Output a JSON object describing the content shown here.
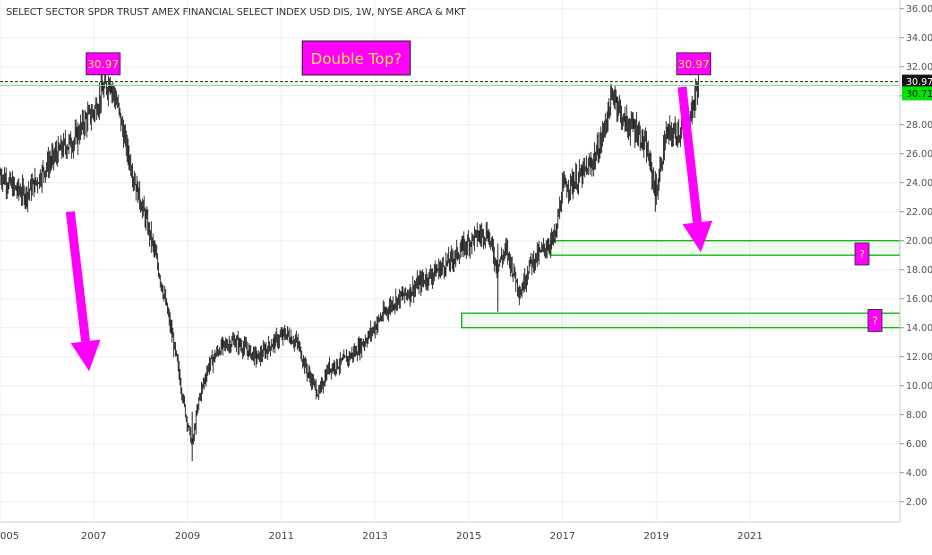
{
  "chart_data": {
    "type": "candlestick",
    "title": "SELECT SECTOR SPDR TRUST AMEX FINANCIAL SELECT INDEX USD DIS, 1W, NYSE ARCA & MKT",
    "x_ticks": [
      "005",
      "2007",
      "2009",
      "2011",
      "2013",
      "2015",
      "2017",
      "2019",
      "2021"
    ],
    "y_ticks": [
      "2.00",
      "4.00",
      "6.00",
      "8.00",
      "10.00",
      "12.00",
      "14.00",
      "16.00",
      "18.00",
      "20.00",
      "22.00",
      "24.00",
      "26.00",
      "28.00",
      "30.00",
      "32.00",
      "34.00",
      "36.00"
    ],
    "ylim": [
      0.6,
      36.6
    ],
    "xlim": [
      2005.0,
      2024.2
    ],
    "price_path": [
      [
        2005.0,
        24.6
      ],
      [
        2005.3,
        23.6
      ],
      [
        2005.55,
        23.2
      ],
      [
        2005.8,
        24.2
      ],
      [
        2006.0,
        25.2
      ],
      [
        2006.3,
        26.3
      ],
      [
        2006.6,
        27.0
      ],
      [
        2006.8,
        28.2
      ],
      [
        2007.0,
        28.9
      ],
      [
        2007.2,
        30.4
      ],
      [
        2007.35,
        30.97
      ],
      [
        2007.5,
        29.4
      ],
      [
        2007.7,
        26.4
      ],
      [
        2007.9,
        23.8
      ],
      [
        2008.1,
        21.6
      ],
      [
        2008.3,
        19.2
      ],
      [
        2008.5,
        16.2
      ],
      [
        2008.65,
        13.8
      ],
      [
        2008.8,
        11.2
      ],
      [
        2008.95,
        8.2
      ],
      [
        2009.1,
        5.9
      ],
      [
        2009.25,
        9.2
      ],
      [
        2009.45,
        11.4
      ],
      [
        2009.7,
        12.6
      ],
      [
        2010.0,
        13.1
      ],
      [
        2010.3,
        12.4
      ],
      [
        2010.5,
        11.9
      ],
      [
        2010.8,
        12.9
      ],
      [
        2011.1,
        13.6
      ],
      [
        2011.35,
        12.9
      ],
      [
        2011.55,
        11.0
      ],
      [
        2011.8,
        9.4
      ],
      [
        2012.0,
        11.2
      ],
      [
        2012.3,
        11.6
      ],
      [
        2012.6,
        12.4
      ],
      [
        2012.9,
        13.6
      ],
      [
        2013.1,
        14.6
      ],
      [
        2013.4,
        15.8
      ],
      [
        2013.7,
        16.4
      ],
      [
        2014.0,
        17.2
      ],
      [
        2014.3,
        17.9
      ],
      [
        2014.6,
        18.6
      ],
      [
        2014.9,
        19.6
      ],
      [
        2015.1,
        20.2
      ],
      [
        2015.4,
        20.6
      ],
      [
        2015.6,
        18.2
      ],
      [
        2015.8,
        19.4
      ],
      [
        2016.1,
        16.4
      ],
      [
        2016.3,
        18.4
      ],
      [
        2016.6,
        19.4
      ],
      [
        2016.85,
        20.3
      ],
      [
        2017.0,
        23.6
      ],
      [
        2017.3,
        24.2
      ],
      [
        2017.6,
        25.2
      ],
      [
        2017.8,
        26.6
      ],
      [
        2018.0,
        29.2
      ],
      [
        2018.1,
        30.2
      ],
      [
        2018.3,
        28.2
      ],
      [
        2018.6,
        27.6
      ],
      [
        2018.8,
        26.2
      ],
      [
        2019.0,
        23.2
      ],
      [
        2019.2,
        27.2
      ],
      [
        2019.5,
        27.6
      ],
      [
        2019.7,
        28.1
      ],
      [
        2019.9,
        30.97
      ]
    ],
    "wicks": [
      {
        "x": 2015.62,
        "low": 15.1,
        "high": 19.8
      },
      {
        "x": 2018.98,
        "low": 22.0,
        "high": 24.8
      },
      {
        "x": 2009.1,
        "low": 4.8,
        "high": 8.2
      },
      {
        "x": 2007.35,
        "low": 30.2,
        "high": 31.3
      }
    ],
    "horizontal_line": {
      "value": 30.97,
      "label": "30.97",
      "style": "dashed"
    },
    "price_label": {
      "value": 30.71,
      "label": "30.71",
      "color": "#00e600"
    },
    "ref_line_value": 30.71,
    "annotations": [
      {
        "text": "30.97",
        "kind": "peak-label",
        "x": 2007.2,
        "y": 32.2
      },
      {
        "text": "30.97",
        "kind": "peak-label",
        "x": 2019.8,
        "y": 32.2
      },
      {
        "text": "Double Top?",
        "kind": "headline",
        "x": 2012.6,
        "y": 32.6
      }
    ],
    "zones": [
      {
        "x0": 2016.75,
        "x1": 2024.2,
        "y0": 19.0,
        "y1": 20.0,
        "label": "?"
      },
      {
        "x0": 2014.85,
        "x1": 2024.2,
        "y0": 14.0,
        "y1": 15.0,
        "label": "?"
      }
    ],
    "arrows": [
      {
        "from": [
          2006.5,
          22.0
        ],
        "to": [
          2006.9,
          11.0
        ]
      },
      {
        "from": [
          2019.55,
          30.6
        ],
        "to": [
          2019.95,
          19.2
        ]
      }
    ],
    "colors": {
      "candle": "#222222",
      "accent": "#ff00ff",
      "zone": "#00aa00",
      "grid": "#eceff2",
      "label_text": "#ffeb3b"
    },
    "grid": true
  }
}
